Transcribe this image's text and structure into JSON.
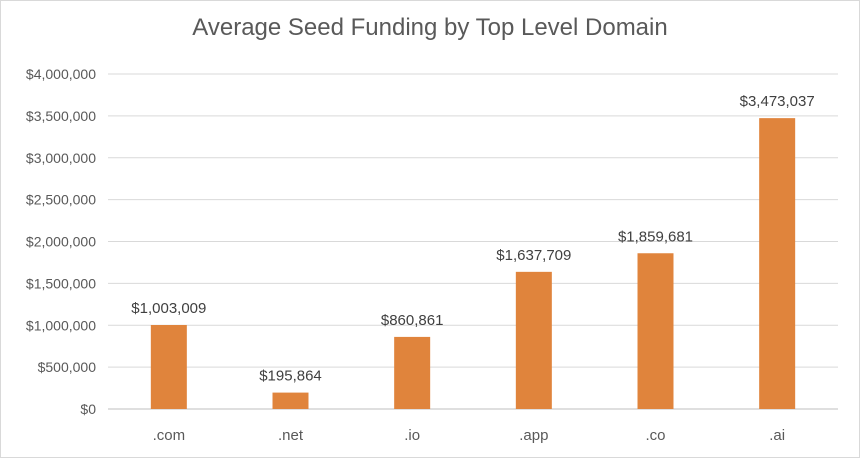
{
  "chart_data": {
    "type": "bar",
    "title": "Average Seed Funding by Top Level Domain",
    "xlabel": "",
    "ylabel": "",
    "categories": [
      ".com",
      ".net",
      ".io",
      ".app",
      ".co",
      ".ai"
    ],
    "values": [
      1003009,
      195864,
      860861,
      1637709,
      1859681,
      3473037
    ],
    "data_labels": [
      "$1,003,009",
      "$195,864",
      "$860,861",
      "$1,637,709",
      "$1,859,681",
      "$3,473,037"
    ],
    "ylim": [
      0,
      4000000
    ],
    "y_ticks": [
      0,
      500000,
      1000000,
      1500000,
      2000000,
      2500000,
      3000000,
      3500000,
      4000000
    ],
    "y_tick_labels": [
      "$0",
      "$500,000",
      "$1,000,000",
      "$1,500,000",
      "$2,000,000",
      "$2,500,000",
      "$3,000,000",
      "$3,500,000",
      "$4,000,000"
    ],
    "grid": true,
    "legend": "none",
    "colors": {
      "bar": "#e0843c",
      "grid": "#d9d9d9",
      "axis": "#bfbfbf",
      "text": "#595959",
      "label": "#404040"
    }
  }
}
